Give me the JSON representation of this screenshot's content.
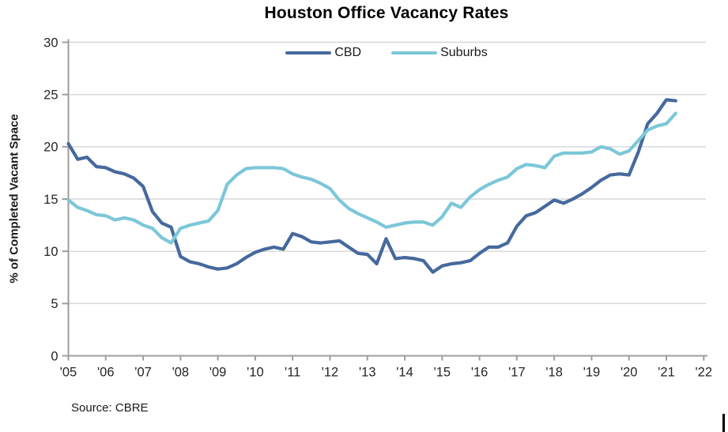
{
  "title": "Houston Office Vacancy Rates",
  "source_note": "Source: CBRE",
  "colors": {
    "background": "#FFFFFF",
    "grid": "#D6D6D6",
    "axis": "#9E9E9E",
    "tick_text": "#262626",
    "cbd_line": "#46699E",
    "suburbs_line": "#7CC7D9"
  },
  "legend": {
    "position": "top-center",
    "items": [
      {
        "label": "CBD"
      },
      {
        "label": "Suburbs"
      }
    ]
  },
  "chart_data": {
    "type": "line",
    "title": "Houston Office Vacancy Rates",
    "xlabel": "",
    "ylabel": "% of Completed Vacant Space",
    "x_start": "2005-Q1",
    "x_end": "2021-Q2",
    "frequency": "quarterly",
    "points_per_year": 4,
    "ylim": [
      0,
      30
    ],
    "yticks": [
      0,
      5,
      10,
      15,
      20,
      25,
      30
    ],
    "x_tick_labels": [
      "'05",
      "'06",
      "'07",
      "'08",
      "'09",
      "'10",
      "'11",
      "'12",
      "'13",
      "'14",
      "'15",
      "'16",
      "'17",
      "'18",
      "'19",
      "'20",
      "'21",
      "'22"
    ],
    "grid": "horizontal",
    "legend_position": "top-center",
    "series": [
      {
        "name": "CBD",
        "color": "#46699E",
        "values": [
          20.3,
          18.8,
          19.0,
          18.1,
          18.0,
          17.6,
          17.4,
          17.0,
          16.2,
          13.8,
          12.7,
          12.3,
          9.5,
          9.0,
          8.8,
          8.5,
          8.3,
          8.4,
          8.8,
          9.4,
          9.9,
          10.2,
          10.4,
          10.2,
          11.7,
          11.4,
          10.9,
          10.8,
          10.9,
          11.0,
          10.4,
          9.8,
          9.7,
          8.8,
          11.2,
          9.3,
          9.4,
          9.3,
          9.1,
          8.0,
          8.6,
          8.8,
          8.9,
          9.1,
          9.8,
          10.4,
          10.4,
          10.8,
          12.4,
          13.4,
          13.7,
          14.3,
          14.9,
          14.6,
          15.0,
          15.5,
          16.1,
          16.8,
          17.3,
          17.4,
          17.3,
          19.5,
          22.2,
          23.2,
          24.5,
          24.4
        ]
      },
      {
        "name": "Suburbs",
        "color": "#7CC7D9",
        "values": [
          14.9,
          14.2,
          13.9,
          13.5,
          13.4,
          13.0,
          13.2,
          13.0,
          12.5,
          12.2,
          11.3,
          10.8,
          12.2,
          12.5,
          12.7,
          12.9,
          13.9,
          16.4,
          17.3,
          17.9,
          18.0,
          18.0,
          18.0,
          17.9,
          17.4,
          17.1,
          16.9,
          16.5,
          16.0,
          14.9,
          14.1,
          13.6,
          13.2,
          12.8,
          12.3,
          12.5,
          12.7,
          12.8,
          12.8,
          12.5,
          13.3,
          14.6,
          14.2,
          15.2,
          15.9,
          16.4,
          16.8,
          17.1,
          17.9,
          18.3,
          18.2,
          18.0,
          19.1,
          19.4,
          19.4,
          19.4,
          19.5,
          20.0,
          19.8,
          19.3,
          19.6,
          20.6,
          21.6,
          22.0,
          22.2,
          23.2
        ]
      }
    ]
  }
}
